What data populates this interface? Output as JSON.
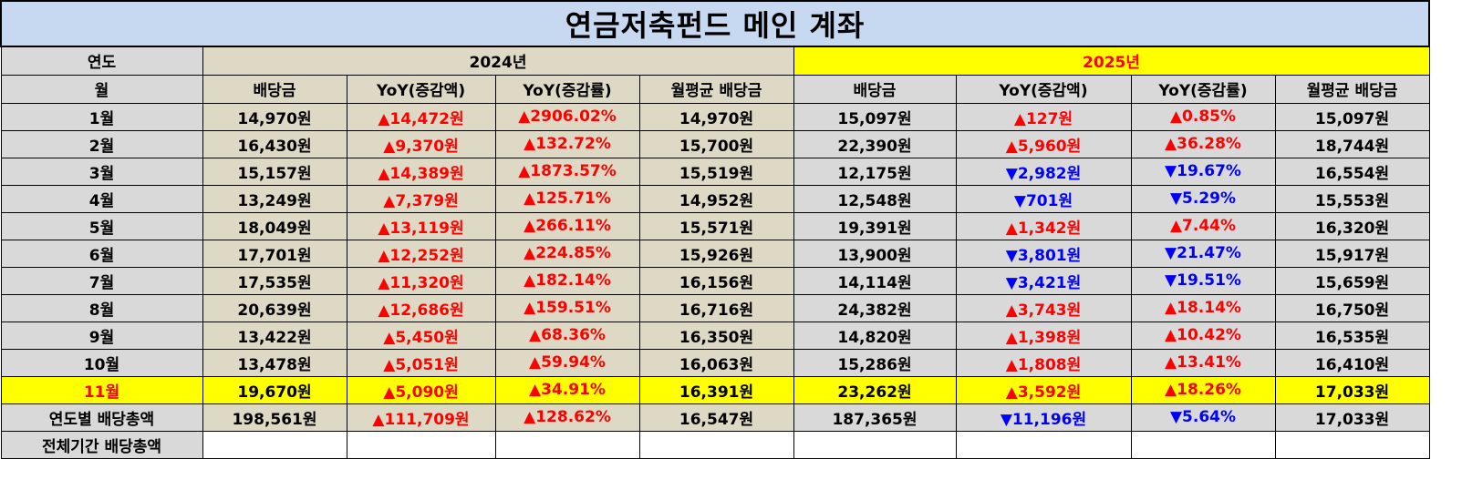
{
  "title": "연금저축펀드 메인 계좌",
  "header": {
    "year_label": "연도",
    "month_label": "월",
    "year_2024": "2024년",
    "year_2025": "2025년",
    "cols_2024": [
      "배당금",
      "YoY(증감액)",
      "YoY(증감률)",
      "월평균 배당금"
    ],
    "cols_2025": [
      "배당금",
      "YoY(증감액)",
      "YoY(증감률)",
      "월평균 배당금"
    ]
  },
  "rows": [
    {
      "label": "1월",
      "y2024": {
        "div": "14,970원",
        "yoy_amt": "▲14,472원",
        "yoy_rate": "▲2906.02%",
        "avg": "14,970원"
      },
      "y2025": {
        "div": "15,097원",
        "yoy_amt": "▲127원",
        "yoy_rate": "▲0.85%",
        "avg": "15,097원"
      }
    },
    {
      "label": "2월",
      "y2024": {
        "div": "16,430원",
        "yoy_amt": "▲9,370원",
        "yoy_rate": "▲132.72%",
        "avg": "15,700원"
      },
      "y2025": {
        "div": "22,390원",
        "yoy_amt": "▲5,960원",
        "yoy_rate": "▲36.28%",
        "avg": "18,744원"
      }
    },
    {
      "label": "3월",
      "y2024": {
        "div": "15,157원",
        "yoy_amt": "▲14,389원",
        "yoy_rate": "▲1873.57%",
        "avg": "15,519원"
      },
      "y2025": {
        "div": "12,175원",
        "yoy_amt": "▼2,982원",
        "yoy_rate": "▼19.67%",
        "avg": "16,554원"
      }
    },
    {
      "label": "4월",
      "y2024": {
        "div": "13,249원",
        "yoy_amt": "▲7,379원",
        "yoy_rate": "▲125.71%",
        "avg": "14,952원"
      },
      "y2025": {
        "div": "12,548원",
        "yoy_amt": "▼701원",
        "yoy_rate": "▼5.29%",
        "avg": "15,553원"
      }
    },
    {
      "label": "5월",
      "y2024": {
        "div": "18,049원",
        "yoy_amt": "▲13,119원",
        "yoy_rate": "▲266.11%",
        "avg": "15,571원"
      },
      "y2025": {
        "div": "19,391원",
        "yoy_amt": "▲1,342원",
        "yoy_rate": "▲7.44%",
        "avg": "16,320원"
      }
    },
    {
      "label": "6월",
      "y2024": {
        "div": "17,701원",
        "yoy_amt": "▲12,252원",
        "yoy_rate": "▲224.85%",
        "avg": "15,926원"
      },
      "y2025": {
        "div": "13,900원",
        "yoy_amt": "▼3,801원",
        "yoy_rate": "▼21.47%",
        "avg": "15,917원"
      }
    },
    {
      "label": "7월",
      "y2024": {
        "div": "17,535원",
        "yoy_amt": "▲11,320원",
        "yoy_rate": "▲182.14%",
        "avg": "16,156원"
      },
      "y2025": {
        "div": "14,114원",
        "yoy_amt": "▼3,421원",
        "yoy_rate": "▼19.51%",
        "avg": "15,659원"
      }
    },
    {
      "label": "8월",
      "y2024": {
        "div": "20,639원",
        "yoy_amt": "▲12,686원",
        "yoy_rate": "▲159.51%",
        "avg": "16,716원"
      },
      "y2025": {
        "div": "24,382원",
        "yoy_amt": "▲3,743원",
        "yoy_rate": "▲18.14%",
        "avg": "16,750원"
      }
    },
    {
      "label": "9월",
      "y2024": {
        "div": "13,422원",
        "yoy_amt": "▲5,450원",
        "yoy_rate": "▲68.36%",
        "avg": "16,350원"
      },
      "y2025": {
        "div": "14,820원",
        "yoy_amt": "▲1,398원",
        "yoy_rate": "▲10.42%",
        "avg": "16,535원"
      }
    },
    {
      "label": "10월",
      "y2024": {
        "div": "13,478원",
        "yoy_amt": "▲5,051원",
        "yoy_rate": "▲59.94%",
        "avg": "16,063원"
      },
      "y2025": {
        "div": "15,286원",
        "yoy_amt": "▲1,808원",
        "yoy_rate": "▲13.41%",
        "avg": "16,410원"
      }
    },
    {
      "label": "11월",
      "y2024": {
        "div": "19,670원",
        "yoy_amt": "▲5,090원",
        "yoy_rate": "▲34.91%",
        "avg": "16,391원"
      },
      "y2025": {
        "div": "23,262원",
        "yoy_amt": "▲3,592원",
        "yoy_rate": "▲18.26%",
        "avg": "17,033원"
      }
    }
  ],
  "yearly_total": {
    "label": "연도별 배당총액",
    "y2024": {
      "div": "198,561원",
      "yoy_amt": "▲111,709원",
      "yoy_rate": "▲128.62%",
      "avg": "16,547원"
    },
    "y2025": {
      "div": "187,365원",
      "yoy_amt": "▼11,196원",
      "yoy_rate": "▼5.64%",
      "avg": "17,033원"
    }
  },
  "overall_total": {
    "label": "전체기간 배당총액"
  },
  "colors": {
    "title_bg": "#c6d9f1",
    "col2024_bg": "#ddd9c4",
    "col2025_bg": "#d9d9d9",
    "highlight": "#ffff00",
    "up": "#ff0000",
    "down": "#0000ff"
  }
}
